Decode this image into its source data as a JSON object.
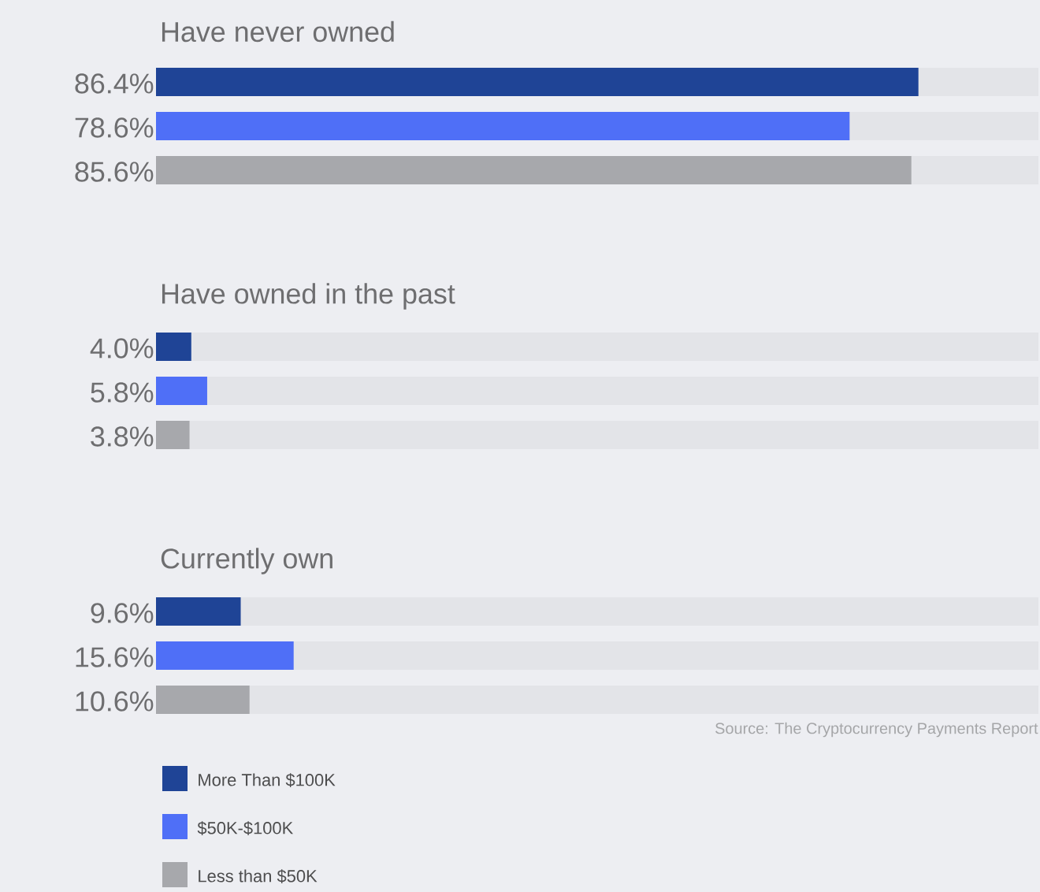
{
  "chart_data": {
    "type": "bar",
    "orientation": "horizontal",
    "categories": [
      "Have never owned",
      "Have owned in the past",
      "Currently own"
    ],
    "series": [
      {
        "name": "More Than $100K",
        "color": "#1f4496",
        "values": [
          86.4,
          4.0,
          9.6
        ],
        "value_labels": [
          "86.4%",
          "4.0%",
          "9.6%"
        ]
      },
      {
        "name": "$50K-$100K",
        "color": "#4f6ff7",
        "values": [
          78.6,
          5.8,
          15.6
        ],
        "value_labels": [
          "78.6%",
          "5.8%",
          "15.6%"
        ]
      },
      {
        "name": "Less than $50K",
        "color": "#a7a8ac",
        "values": [
          85.6,
          3.8,
          10.6
        ],
        "value_labels": [
          "85.6%",
          "3.8%",
          "10.6%"
        ]
      }
    ],
    "xlim": [
      0,
      100
    ],
    "legend": "bottom left",
    "annotations": [
      "Source: The Cryptocurrency Payments Report"
    ]
  }
}
